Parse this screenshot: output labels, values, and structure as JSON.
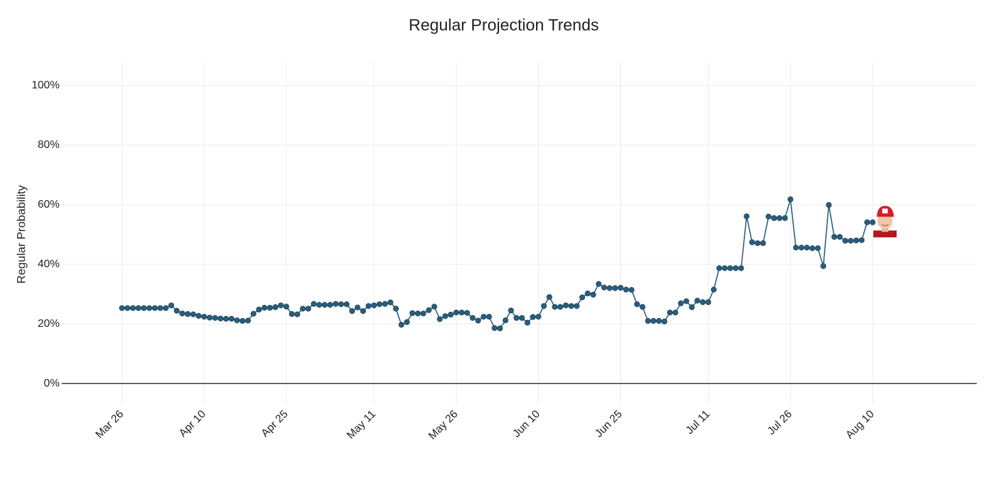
{
  "chart_data": {
    "type": "line",
    "title": "Regular Projection Trends",
    "y_label": "Regular Probability",
    "x": [
      "Mar 26",
      "Mar 27",
      "Mar 28",
      "Mar 29",
      "Mar 30",
      "Mar 31",
      "Apr 1",
      "Apr 2",
      "Apr 3",
      "Apr 4",
      "Apr 5",
      "Apr 6",
      "Apr 7",
      "Apr 8",
      "Apr 9",
      "Apr 10",
      "Apr 11",
      "Apr 12",
      "Apr 13",
      "Apr 14",
      "Apr 15",
      "Apr 16",
      "Apr 17",
      "Apr 18",
      "Apr 19",
      "Apr 20",
      "Apr 21",
      "Apr 22",
      "Apr 23",
      "Apr 24",
      "Apr 25",
      "Apr 26",
      "Apr 27",
      "Apr 28",
      "Apr 29",
      "Apr 30",
      "May 1",
      "May 2",
      "May 3",
      "May 4",
      "May 5",
      "May 6",
      "May 7",
      "May 8",
      "May 9",
      "May 10",
      "May 11",
      "May 12",
      "May 13",
      "May 14",
      "May 15",
      "May 16",
      "May 17",
      "May 18",
      "May 19",
      "May 20",
      "May 21",
      "May 22",
      "May 23",
      "May 24",
      "May 25",
      "May 26",
      "May 27",
      "May 28",
      "May 29",
      "May 30",
      "May 31",
      "Jun 1",
      "Jun 2",
      "Jun 3",
      "Jun 4",
      "Jun 5",
      "Jun 6",
      "Jun 7",
      "Jun 8",
      "Jun 9",
      "Jun 10",
      "Jun 11",
      "Jun 12",
      "Jun 13",
      "Jun 14",
      "Jun 15",
      "Jun 16",
      "Jun 17",
      "Jun 18",
      "Jun 19",
      "Jun 20",
      "Jun 21",
      "Jun 22",
      "Jun 23",
      "Jun 24",
      "Jun 25",
      "Jun 26",
      "Jun 27",
      "Jun 28",
      "Jun 29",
      "Jun 30",
      "Jul 1",
      "Jul 2",
      "Jul 3",
      "Jul 4",
      "Jul 5",
      "Jul 6",
      "Jul 7",
      "Jul 8",
      "Jul 9",
      "Jul 10",
      "Jul 11",
      "Jul 12",
      "Jul 13",
      "Jul 14",
      "Jul 15",
      "Jul 16",
      "Jul 17",
      "Jul 18",
      "Jul 19",
      "Jul 20",
      "Jul 21",
      "Jul 22",
      "Jul 23",
      "Jul 24",
      "Jul 25",
      "Jul 26",
      "Jul 27",
      "Jul 28",
      "Jul 29",
      "Jul 30",
      "Jul 31",
      "Aug 1",
      "Aug 2",
      "Aug 3",
      "Aug 4",
      "Aug 5",
      "Aug 6",
      "Aug 7",
      "Aug 8",
      "Aug 9",
      "Aug 10"
    ],
    "series": [
      {
        "name": "Regular Probability",
        "color": "#2a5d7c",
        "values": [
          25.3,
          25.3,
          25.3,
          25.3,
          25.3,
          25.3,
          25.3,
          25.3,
          25.3,
          26.2,
          24.4,
          23.5,
          23.3,
          23.2,
          22.7,
          22.4,
          22.1,
          22.0,
          21.8,
          21.7,
          21.7,
          21.2,
          21.0,
          21.1,
          23.4,
          24.8,
          25.4,
          25.4,
          25.6,
          26.2,
          25.8,
          23.3,
          23.2,
          25.1,
          25.1,
          26.7,
          26.4,
          26.4,
          26.4,
          26.7,
          26.6,
          26.6,
          24.3,
          25.5,
          24.3,
          26.0,
          26.2,
          26.6,
          26.7,
          27.2,
          25.1,
          19.7,
          20.6,
          23.6,
          23.5,
          23.5,
          24.6,
          25.8,
          21.6,
          22.6,
          23.1,
          23.8,
          23.8,
          23.7,
          22.0,
          21.1,
          22.4,
          22.4,
          18.6,
          18.5,
          21.2,
          24.5,
          22.0,
          22.0,
          20.4,
          22.3,
          22.4,
          26.0,
          29.0,
          25.7,
          25.7,
          26.2,
          26.0,
          26.0,
          28.9,
          30.2,
          29.8,
          33.4,
          32.2,
          32.0,
          32.0,
          32.1,
          31.5,
          31.4,
          26.6,
          25.7,
          21.0,
          21.0,
          21.0,
          20.8,
          23.8,
          23.8,
          26.9,
          27.6,
          25.6,
          27.8,
          27.3,
          27.3,
          31.5,
          38.7,
          38.7,
          38.7,
          38.7,
          38.7,
          56.1,
          47.4,
          47.1,
          47.1,
          56.0,
          55.5,
          55.5,
          55.5,
          61.8,
          45.6,
          45.6,
          45.6,
          45.4,
          45.4,
          39.4,
          59.9,
          49.2,
          49.2,
          47.9,
          47.9,
          48.0,
          48.1,
          54.1,
          54.1
        ]
      }
    ],
    "xlim": [
      "Mar 15",
      "Aug 29"
    ],
    "xticks": [
      "Mar 26",
      "Apr 10",
      "Apr 25",
      "May 11",
      "May 26",
      "Jun 10",
      "Jun 25",
      "Jul 11",
      "Jul 26",
      "Aug 10"
    ],
    "ylim": [
      -7,
      108
    ],
    "yticks": [
      {
        "value": 0,
        "label": "0%"
      },
      {
        "value": 20,
        "label": "20%"
      },
      {
        "value": 40,
        "label": "40%"
      },
      {
        "value": 60,
        "label": "60%"
      },
      {
        "value": 80,
        "label": "80%"
      },
      {
        "value": 100,
        "label": "100%"
      }
    ],
    "grid": true
  }
}
